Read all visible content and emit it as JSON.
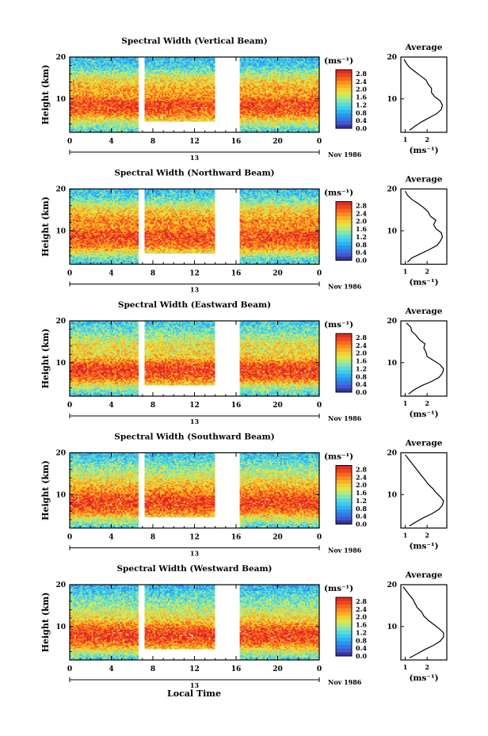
{
  "figure": {
    "x_label": "Local Time",
    "date_label": "Nov 1986",
    "day_label": "13",
    "y_label": "Height (km)",
    "avg_title": "Average",
    "unit_label": "(ms⁻¹)"
  },
  "chart_data": [
    {
      "type": "heatmap",
      "title": "Spectral Width (Vertical Beam)",
      "xlabel": "",
      "ylabel": "Height (km)",
      "x_ticks": [
        "0",
        "4",
        "8",
        "12",
        "16",
        "20",
        "0"
      ],
      "y_ticks": [
        "20",
        "10"
      ],
      "xlim": [
        0,
        24
      ],
      "ylim": [
        2,
        20
      ],
      "colorbar": {
        "label": "(ms⁻¹)",
        "ticks": [
          "2.8",
          "2.4",
          "2.0",
          "1.6",
          "1.2",
          "0.8",
          "0.4",
          "0.0"
        ],
        "range": [
          0,
          3.0
        ]
      },
      "data_gaps_hours": [
        [
          6.6,
          7.2
        ],
        [
          14.0,
          16.3
        ]
      ],
      "reduced_coverage": {
        "hours": [
          7.2,
          14.0
        ],
        "min_height_km": 4.5
      },
      "average_profile": {
        "x_ticks": [
          "1",
          "2"
        ],
        "y_ticks": [
          "20",
          "10"
        ],
        "height_km": [
          2.5,
          3.5,
          4.5,
          5.5,
          6.5,
          7.5,
          8.5,
          9.5,
          10.5,
          11.5,
          12.5,
          13.5,
          14.5,
          15.5,
          16.5,
          17.5,
          18.5,
          19.5
        ],
        "width_ms": [
          1.2,
          1.45,
          1.75,
          2.1,
          2.45,
          2.65,
          2.7,
          2.6,
          2.35,
          2.2,
          2.2,
          2.05,
          1.95,
          1.7,
          1.45,
          1.2,
          1.05,
          0.95
        ]
      }
    },
    {
      "type": "heatmap",
      "title": "Spectral Width (Northward Beam)",
      "xlabel": "",
      "ylabel": "Height (km)",
      "x_ticks": [
        "0",
        "4",
        "8",
        "12",
        "16",
        "20",
        "0"
      ],
      "y_ticks": [
        "20",
        "10"
      ],
      "xlim": [
        0,
        24
      ],
      "ylim": [
        2,
        20
      ],
      "colorbar": {
        "label": "(ms⁻¹)",
        "ticks": [
          "2.8",
          "2.4",
          "2.0",
          "1.6",
          "1.2",
          "0.8",
          "0.4",
          "0.0"
        ],
        "range": [
          0,
          3.0
        ]
      },
      "data_gaps_hours": [
        [
          6.6,
          7.2
        ],
        [
          14.0,
          16.3
        ]
      ],
      "reduced_coverage": {
        "hours": [
          7.2,
          14.0
        ],
        "min_height_km": 4.5
      },
      "average_profile": {
        "x_ticks": [
          "1",
          "2"
        ],
        "y_ticks": [
          "20",
          "10"
        ],
        "height_km": [
          2.5,
          3.5,
          4.5,
          5.5,
          6.5,
          7.5,
          8.5,
          9.5,
          10.5,
          11.5,
          12.5,
          13.5,
          14.5,
          15.5,
          16.5,
          17.5,
          18.5,
          19.5
        ],
        "width_ms": [
          1.1,
          1.3,
          1.7,
          2.1,
          2.45,
          2.6,
          2.7,
          2.65,
          2.4,
          2.3,
          2.4,
          2.15,
          2.05,
          1.85,
          1.6,
          1.3,
          1.1,
          1.0
        ]
      }
    },
    {
      "type": "heatmap",
      "title": "Spectral Width (Eastward Beam)",
      "xlabel": "",
      "ylabel": "Height (km)",
      "x_ticks": [
        "0",
        "4",
        "8",
        "12",
        "16",
        "20",
        "0"
      ],
      "y_ticks": [
        "20",
        "10"
      ],
      "xlim": [
        0,
        24
      ],
      "ylim": [
        2,
        20
      ],
      "colorbar": {
        "label": "(ms⁻¹)",
        "ticks": [
          "2.8",
          "2.4",
          "2.0",
          "1.6",
          "1.2",
          "0.8",
          "0.4",
          "0.0"
        ],
        "range": [
          0,
          3.0
        ]
      },
      "data_gaps_hours": [
        [
          6.6,
          7.2
        ],
        [
          14.0,
          16.3
        ]
      ],
      "reduced_coverage": {
        "hours": [
          7.2,
          14.0
        ],
        "min_height_km": 4.5
      },
      "average_profile": {
        "x_ticks": [
          "1",
          "2"
        ],
        "y_ticks": [
          "20",
          "10"
        ],
        "height_km": [
          2.5,
          3.5,
          4.5,
          5.5,
          6.5,
          7.5,
          8.5,
          9.5,
          10.5,
          11.5,
          12.5,
          13.5,
          14.5,
          15.5,
          16.5,
          17.5,
          18.5,
          19.5
        ],
        "width_ms": [
          1.15,
          1.4,
          1.75,
          2.2,
          2.55,
          2.7,
          2.75,
          2.6,
          2.3,
          2.0,
          1.95,
          1.85,
          1.9,
          1.65,
          1.5,
          1.3,
          1.25,
          1.05
        ]
      }
    },
    {
      "type": "heatmap",
      "title": "Spectral Width (Southward Beam)",
      "xlabel": "",
      "ylabel": "Height (km)",
      "x_ticks": [
        "0",
        "4",
        "8",
        "12",
        "16",
        "20",
        "0"
      ],
      "y_ticks": [
        "20",
        "10"
      ],
      "xlim": [
        0,
        24
      ],
      "ylim": [
        2,
        20
      ],
      "colorbar": {
        "label": "(ms⁻¹)",
        "ticks": [
          "2.8",
          "2.4",
          "2.0",
          "1.6",
          "1.2",
          "0.8",
          "0.4",
          "0.0"
        ],
        "range": [
          0,
          3.0
        ]
      },
      "data_gaps_hours": [
        [
          6.6,
          7.2
        ],
        [
          14.0,
          16.3
        ]
      ],
      "reduced_coverage": {
        "hours": [
          7.2,
          14.0
        ],
        "min_height_km": 4.5
      },
      "average_profile": {
        "x_ticks": [
          "1",
          "2"
        ],
        "y_ticks": [
          "20",
          "10"
        ],
        "height_km": [
          2.5,
          3.5,
          4.5,
          5.5,
          6.5,
          7.5,
          8.5,
          9.5,
          10.5,
          11.5,
          12.5,
          13.5,
          14.5,
          15.5,
          16.5,
          17.5,
          18.5,
          19.5
        ],
        "width_ms": [
          1.2,
          1.5,
          1.85,
          2.25,
          2.55,
          2.7,
          2.75,
          2.6,
          2.4,
          2.25,
          2.05,
          1.9,
          1.75,
          1.6,
          1.45,
          1.3,
          1.15,
          1.0
        ]
      }
    },
    {
      "type": "heatmap",
      "title": "Spectral Width (Westward Beam)",
      "xlabel": "Local Time",
      "ylabel": "Height (km)",
      "x_ticks": [
        "0",
        "4",
        "8",
        "12",
        "16",
        "20",
        "0"
      ],
      "y_ticks": [
        "20",
        "10"
      ],
      "xlim": [
        0,
        24
      ],
      "ylim": [
        2,
        20
      ],
      "colorbar": {
        "label": "(ms⁻¹)",
        "ticks": [
          "2.8",
          "2.4",
          "2.0",
          "1.6",
          "1.2",
          "0.8",
          "0.4",
          "0.0"
        ],
        "range": [
          0,
          3.0
        ]
      },
      "data_gaps_hours": [
        [
          6.6,
          7.2
        ],
        [
          14.0,
          16.3
        ]
      ],
      "reduced_coverage": {
        "hours": [
          7.2,
          14.0
        ],
        "min_height_km": 4.5
      },
      "average_profile": {
        "x_ticks": [
          "1",
          "2"
        ],
        "y_ticks": [
          "20",
          "10"
        ],
        "height_km": [
          2.5,
          3.5,
          4.5,
          5.5,
          6.5,
          7.5,
          8.5,
          9.5,
          10.5,
          11.5,
          12.5,
          13.5,
          14.5,
          15.5,
          16.5,
          17.5,
          18.5,
          19.5
        ],
        "width_ms": [
          1.2,
          1.55,
          1.9,
          2.3,
          2.6,
          2.75,
          2.75,
          2.55,
          2.3,
          2.05,
          1.85,
          1.75,
          1.55,
          1.45,
          1.35,
          1.2,
          1.05,
          0.9
        ]
      }
    }
  ]
}
